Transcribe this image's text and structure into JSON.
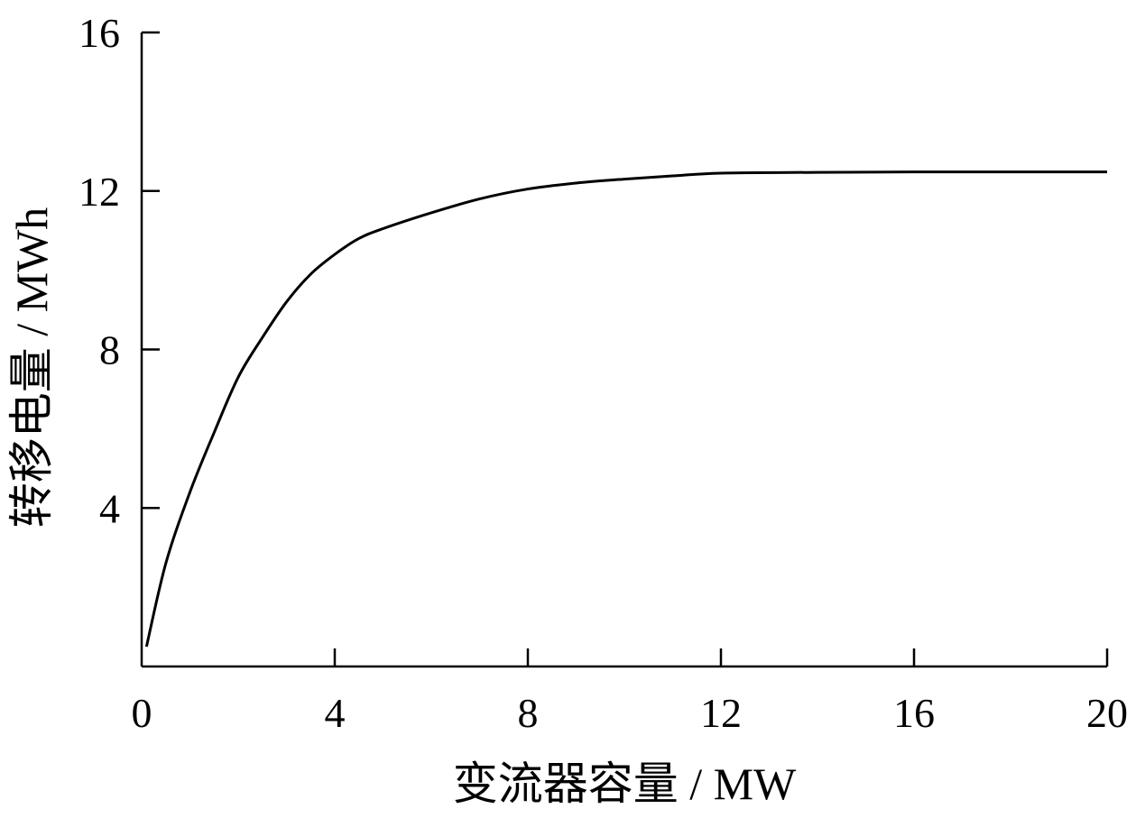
{
  "chart_data": {
    "type": "line",
    "xlabel": "变流器容量 / MW",
    "ylabel": "转移电量 / MWh",
    "xlim": [
      0,
      20
    ],
    "ylim": [
      0,
      16
    ],
    "xticks": [
      0,
      4,
      8,
      12,
      16,
      20
    ],
    "yticks": [
      4,
      8,
      12,
      16
    ],
    "xtick_labels": [
      "0",
      "4",
      "8",
      "12",
      "16",
      "20"
    ],
    "ytick_labels": [
      "4",
      "8",
      "12",
      "16"
    ],
    "grid": false,
    "series": [
      {
        "color": "#000000",
        "x": [
          0.1,
          0.5,
          1.0,
          1.5,
          2.0,
          2.5,
          3.0,
          3.5,
          4.0,
          4.5,
          5.0,
          6.0,
          7.0,
          8.0,
          9.0,
          10.0,
          11.0,
          12.0,
          14.0,
          16.0,
          18.0,
          20.0
        ],
        "y": [
          0.5,
          2.6,
          4.4,
          5.9,
          7.3,
          8.3,
          9.2,
          9.9,
          10.4,
          10.8,
          11.05,
          11.45,
          11.8,
          12.05,
          12.2,
          12.3,
          12.38,
          12.45,
          12.47,
          12.48,
          12.48,
          12.48
        ]
      }
    ]
  }
}
